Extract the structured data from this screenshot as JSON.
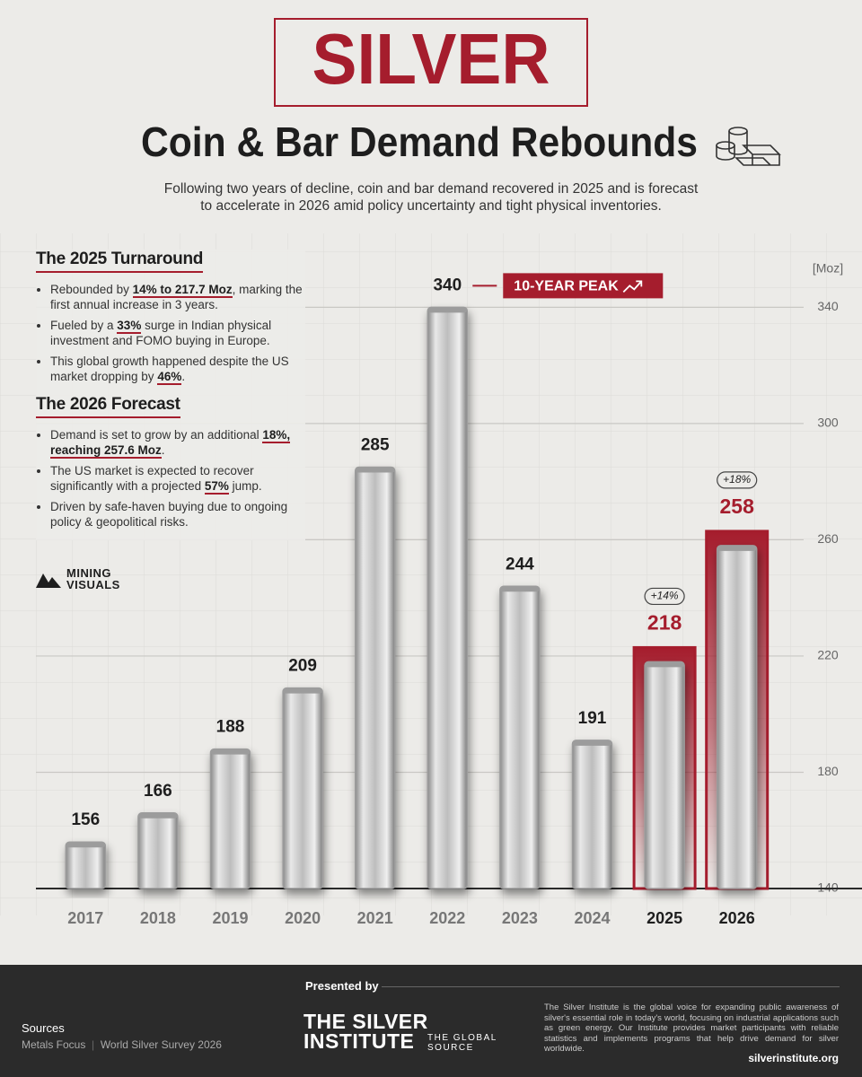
{
  "header": {
    "title": "SILVER",
    "headline": "Coin & Bar Demand Rebounds",
    "subtitle": [
      "Following two years of decline, coin and bar demand recovered in 2025 and is forecast",
      "to accelerate in 2026 amid policy uncertainty and tight physical inventories."
    ]
  },
  "sidebar": {
    "sections": [
      {
        "heading": "The 2025 Turnaround",
        "bullets": [
          [
            "Rebounded by ",
            "14% to 217.7 Moz",
            ", marking the first annual increase in 3 years."
          ],
          [
            "Fueled by a ",
            "33%",
            " surge in Indian physical investment and FOMO buying in Europe."
          ],
          [
            "This global growth happened despite the US market dropping by ",
            "46%",
            "."
          ]
        ]
      },
      {
        "heading": "The 2026 Forecast",
        "bullets": [
          [
            "Demand is set to grow by an additional ",
            "18%, reaching 257.6 Moz",
            "."
          ],
          [
            "The US market is expected to recover significantly with a projected ",
            "57%",
            " jump."
          ],
          [
            "Driven by safe-haven buying due to ongoing policy & geopolitical risks."
          ]
        ]
      }
    ],
    "logo": [
      "MINING",
      "VISUALS"
    ]
  },
  "chart_data": {
    "type": "bar",
    "y_unit": "[Moz]",
    "categories": [
      "2017",
      "2018",
      "2019",
      "2020",
      "2021",
      "2022",
      "2023",
      "2024",
      "2025",
      "2026"
    ],
    "values": [
      156,
      166,
      188,
      209,
      285,
      340,
      244,
      191,
      218,
      258
    ],
    "highlight": [
      false,
      false,
      false,
      false,
      false,
      false,
      false,
      false,
      true,
      true
    ],
    "bar_color": "#9c9c9c",
    "highlight_color": "#a51d2d",
    "label_color": "#1e1e1e",
    "ylim": [
      140,
      350
    ],
    "yticks": [
      140,
      180,
      220,
      260,
      300,
      340
    ],
    "grid": true,
    "annotations": [
      {
        "text": "10-YEAR PEAK",
        "at": "2022"
      },
      {
        "text": "+14%",
        "at": "2025"
      },
      {
        "text": "+18%",
        "at": "2026"
      }
    ]
  },
  "footer": {
    "presented_by": "Presented by",
    "org": [
      "THE SILVER",
      "INSTITUTE"
    ],
    "tagline": [
      "THE GLOBAL",
      "SOURCE"
    ],
    "sources_heading": "Sources",
    "sources": [
      "Metals Focus",
      "World Silver Survey 2026"
    ],
    "about": "The Silver Institute is the global voice for expanding public awareness of silver's essential role in today's world, focusing on industrial applications such as green energy. Our Institute provides market participants with reliable statistics and implements programs that help drive demand for silver worldwide.",
    "url": "silverinstitute.org"
  }
}
